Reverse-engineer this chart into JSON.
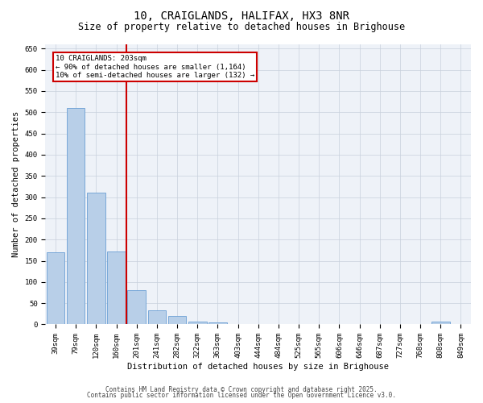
{
  "title_line1": "10, CRAIGLANDS, HALIFAX, HX3 8NR",
  "title_line2": "Size of property relative to detached houses in Brighouse",
  "xlabel": "Distribution of detached houses by size in Brighouse",
  "ylabel": "Number of detached properties",
  "categories": [
    "39sqm",
    "79sqm",
    "120sqm",
    "160sqm",
    "201sqm",
    "241sqm",
    "282sqm",
    "322sqm",
    "363sqm",
    "403sqm",
    "444sqm",
    "484sqm",
    "525sqm",
    "565sqm",
    "606sqm",
    "646sqm",
    "687sqm",
    "727sqm",
    "768sqm",
    "808sqm",
    "849sqm"
  ],
  "values": [
    170,
    510,
    310,
    172,
    80,
    33,
    20,
    6,
    5,
    1,
    0,
    0,
    0,
    0,
    0,
    0,
    0,
    0,
    0,
    6,
    0
  ],
  "bar_color": "#b8cfe8",
  "bar_edge_color": "#6a9fd4",
  "annotation_line1": "10 CRAIGLANDS: 203sqm",
  "annotation_line2": "← 90% of detached houses are smaller (1,164)",
  "annotation_line3": "10% of semi-detached houses are larger (132) →",
  "vline_x": 3.5,
  "vline_color": "#cc0000",
  "annotation_box_edgecolor": "#cc0000",
  "annotation_bg": "#ffffff",
  "ylim": [
    0,
    660
  ],
  "yticks": [
    0,
    50,
    100,
    150,
    200,
    250,
    300,
    350,
    400,
    450,
    500,
    550,
    600,
    650
  ],
  "grid_color": "#c8d0dc",
  "bg_color": "#eef2f8",
  "footer_line1": "Contains HM Land Registry data © Crown copyright and database right 2025.",
  "footer_line2": "Contains public sector information licensed under the Open Government Licence v3.0.",
  "title_fontsize": 10,
  "subtitle_fontsize": 8.5,
  "axis_label_fontsize": 7.5,
  "tick_fontsize": 6.5,
  "annotation_fontsize": 6.5,
  "footer_fontsize": 5.5
}
